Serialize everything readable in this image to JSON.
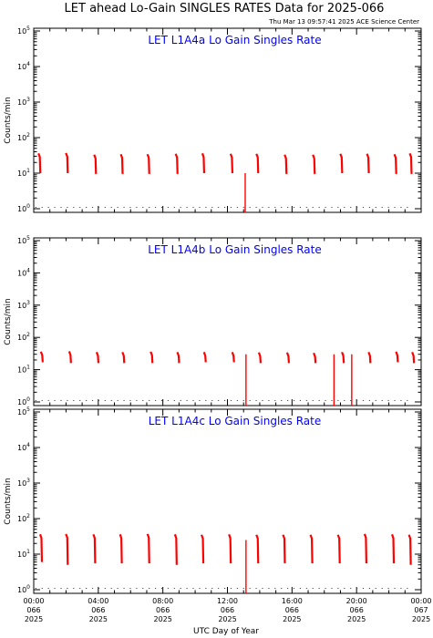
{
  "header": {
    "title": "LET ahead Lo-Gain SINGLES RATES Data for 2025-066",
    "stamp": "Thu Mar 13 09:57:41 2025 ACE Science Center"
  },
  "colors": {
    "data": "#ff0000",
    "panel_title": "#0000ff",
    "axes": "#000000"
  },
  "chart_data": [
    {
      "type": "line",
      "title": "LET L1A4a Lo Gain Singles Rate",
      "ylabel": "Counts/min",
      "yscale": "log",
      "ylim": [
        1,
        100000
      ],
      "yticks": [
        {
          "exp": "0"
        },
        {
          "exp": "1"
        },
        {
          "exp": "2"
        },
        {
          "exp": "3"
        },
        {
          "exp": "4"
        },
        {
          "exp": "5"
        }
      ],
      "bursts": [
        {
          "t": 0.35,
          "low": 10,
          "high": 36
        },
        {
          "t": 2.05,
          "low": 10,
          "high": 37
        },
        {
          "t": 3.8,
          "low": 9.5,
          "high": 33
        },
        {
          "t": 5.45,
          "low": 9.5,
          "high": 34
        },
        {
          "t": 7.1,
          "low": 9.5,
          "high": 34
        },
        {
          "t": 8.85,
          "low": 9.5,
          "high": 35
        },
        {
          "t": 10.5,
          "low": 10,
          "high": 36
        },
        {
          "t": 12.25,
          "low": 10,
          "high": 35
        },
        {
          "t": 13.85,
          "low": 10,
          "high": 35
        },
        {
          "t": 15.6,
          "low": 9.5,
          "high": 33
        },
        {
          "t": 17.35,
          "low": 9.5,
          "high": 33
        },
        {
          "t": 19.05,
          "low": 10,
          "high": 35
        },
        {
          "t": 20.7,
          "low": 10,
          "high": 35
        },
        {
          "t": 22.4,
          "low": 9.5,
          "high": 34
        },
        {
          "t": 23.35,
          "low": 9.5,
          "high": 36
        }
      ],
      "dropouts": [
        {
          "t": 13.1,
          "top": 10
        }
      ]
    },
    {
      "type": "line",
      "title": "LET L1A4b Lo Gain Singles Rate",
      "ylabel": "Counts/min",
      "yscale": "log",
      "ylim": [
        1,
        100000
      ],
      "yticks": [
        {
          "exp": "0"
        },
        {
          "exp": "1"
        },
        {
          "exp": "2"
        },
        {
          "exp": "3"
        },
        {
          "exp": "4"
        },
        {
          "exp": "5"
        }
      ],
      "bursts": [
        {
          "t": 0.5,
          "low": 17,
          "high": 36
        },
        {
          "t": 2.25,
          "low": 16,
          "high": 37
        },
        {
          "t": 3.95,
          "low": 16,
          "high": 35
        },
        {
          "t": 5.55,
          "low": 16,
          "high": 35
        },
        {
          "t": 7.3,
          "low": 16,
          "high": 36
        },
        {
          "t": 8.95,
          "low": 16,
          "high": 35
        },
        {
          "t": 10.6,
          "low": 17,
          "high": 35
        },
        {
          "t": 12.35,
          "low": 17,
          "high": 35
        },
        {
          "t": 14.0,
          "low": 16,
          "high": 34
        },
        {
          "t": 15.75,
          "low": 16,
          "high": 34
        },
        {
          "t": 17.4,
          "low": 16,
          "high": 33
        },
        {
          "t": 19.15,
          "low": 16,
          "high": 35
        },
        {
          "t": 20.8,
          "low": 16,
          "high": 35
        },
        {
          "t": 22.5,
          "low": 17,
          "high": 36
        },
        {
          "t": 23.5,
          "low": 16,
          "high": 35
        }
      ],
      "dropouts": [
        {
          "t": 13.15,
          "top": 30
        },
        {
          "t": 18.6,
          "top": 30
        },
        {
          "t": 19.7,
          "top": 30
        }
      ]
    },
    {
      "type": "line",
      "title": "LET L1A4c Lo Gain Singles Rate",
      "ylabel": "Counts/min",
      "yscale": "log",
      "ylim": [
        1,
        100000
      ],
      "yticks": [
        {
          "exp": "0"
        },
        {
          "exp": "1"
        },
        {
          "exp": "2"
        },
        {
          "exp": "3"
        },
        {
          "exp": "4"
        },
        {
          "exp": "5"
        }
      ],
      "bursts": [
        {
          "t": 0.45,
          "low": 6,
          "high": 36
        },
        {
          "t": 2.05,
          "low": 5,
          "high": 37
        },
        {
          "t": 3.75,
          "low": 5.5,
          "high": 36
        },
        {
          "t": 5.4,
          "low": 5.5,
          "high": 36
        },
        {
          "t": 7.1,
          "low": 5.5,
          "high": 37
        },
        {
          "t": 8.8,
          "low": 5,
          "high": 36
        },
        {
          "t": 10.45,
          "low": 5.5,
          "high": 35
        },
        {
          "t": 12.15,
          "low": 5.5,
          "high": 36
        },
        {
          "t": 13.85,
          "low": 5.5,
          "high": 35
        },
        {
          "t": 15.5,
          "low": 5.5,
          "high": 35
        },
        {
          "t": 17.2,
          "low": 5.5,
          "high": 35
        },
        {
          "t": 18.9,
          "low": 5.5,
          "high": 35
        },
        {
          "t": 20.55,
          "low": 5.5,
          "high": 37
        },
        {
          "t": 22.25,
          "low": 5.5,
          "high": 36
        },
        {
          "t": 23.3,
          "low": 5,
          "high": 35
        }
      ],
      "dropouts": [
        {
          "t": 13.15,
          "top": 25
        }
      ]
    }
  ],
  "x_axis": {
    "label": "UTC Day of Year",
    "xlim": [
      0,
      24
    ],
    "ticks": [
      {
        "t": 0,
        "time": "00:00",
        "doy": "066",
        "year": "2025"
      },
      {
        "t": 4,
        "time": "04:00",
        "doy": "066",
        "year": "2025"
      },
      {
        "t": 8,
        "time": "08:00",
        "doy": "066",
        "year": "2025"
      },
      {
        "t": 12,
        "time": "12:00",
        "doy": "066",
        "year": "2025"
      },
      {
        "t": 16,
        "time": "16:00",
        "doy": "066",
        "year": "2025"
      },
      {
        "t": 20,
        "time": "20:00",
        "doy": "066",
        "year": "2025"
      },
      {
        "t": 24,
        "time": "00:00",
        "doy": "067",
        "year": "2025"
      }
    ]
  }
}
